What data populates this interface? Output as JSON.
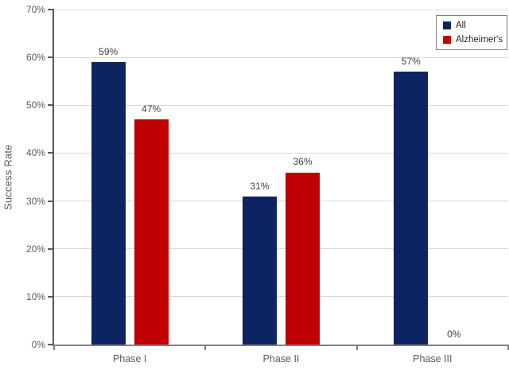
{
  "chart_data": {
    "type": "bar",
    "title": "",
    "ylabel": "Success Rate",
    "xlabel": "",
    "categories": [
      "Phase I",
      "Phase II",
      "Phase III"
    ],
    "series": [
      {
        "name": "All",
        "color": "#0c2461",
        "values": [
          59,
          31,
          57
        ],
        "labels": [
          "59%",
          "31%",
          "57%"
        ]
      },
      {
        "name": "Alzheimer's",
        "color": "#c00000",
        "values": [
          47,
          36,
          0
        ],
        "labels": [
          "47%",
          "36%",
          "0%"
        ]
      }
    ],
    "ylim": [
      0,
      70
    ],
    "ytick_step": 10,
    "ytick_labels": [
      "0%",
      "10%",
      "20%",
      "30%",
      "40%",
      "50%",
      "60%",
      "70%"
    ],
    "grid": "horizontal",
    "legend_position": "top-right"
  },
  "colors": {
    "background": "#ffffff",
    "grid": "#d9d9d9",
    "y_axis": "#595959",
    "x_axis": "#808080",
    "tick_text": "#595959",
    "data_label_text": "#404040",
    "legend_border": "#7f7f7f",
    "legend_text": "#262626"
  }
}
